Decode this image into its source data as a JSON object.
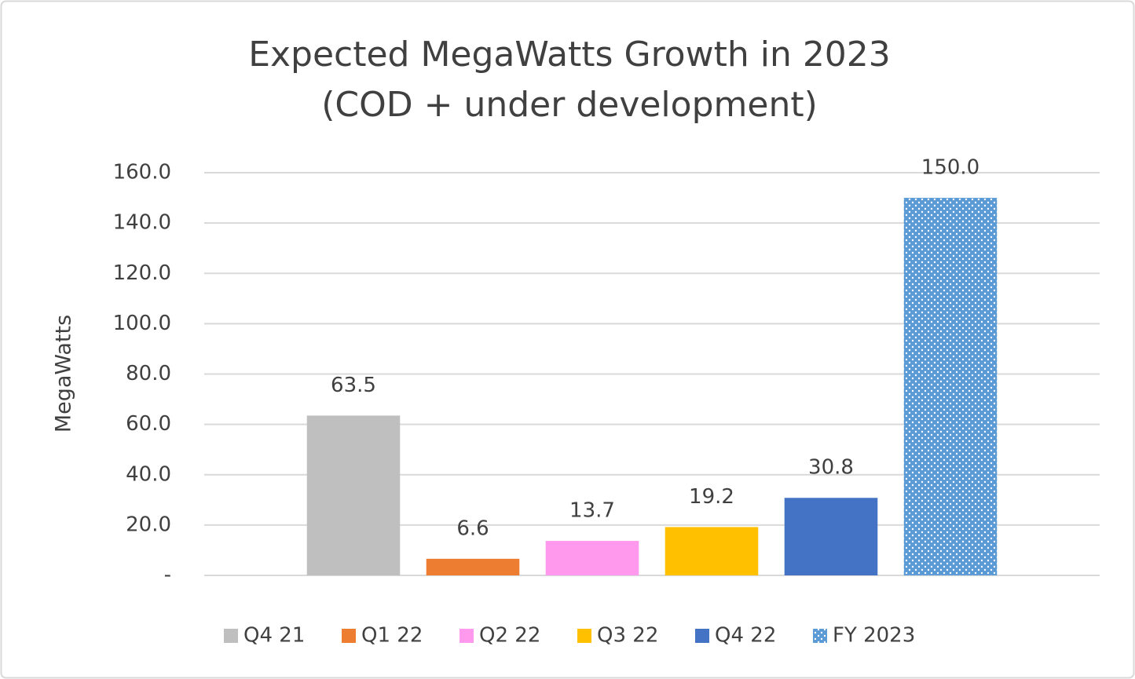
{
  "chart_data": {
    "type": "bar",
    "title": [
      "Expected MegaWatts Growth in 2023",
      "(COD + under development)"
    ],
    "y_axis_label": "MegaWatts",
    "categories": [
      null
    ],
    "series": [
      {
        "name": "Q4 21",
        "color": "#bfbfbf",
        "values": [
          63.5
        ],
        "value_labels": [
          "63.5"
        ]
      },
      {
        "name": "Q1 22",
        "color": "#ed7d31",
        "values": [
          6.6
        ],
        "value_labels": [
          "6.6"
        ]
      },
      {
        "name": "Q2 22",
        "color": "#ff99ee",
        "values": [
          13.7
        ],
        "value_labels": [
          "13.7"
        ]
      },
      {
        "name": "Q3 22",
        "color": "#ffc000",
        "values": [
          19.2
        ],
        "value_labels": [
          "19.2"
        ]
      },
      {
        "name": "Q4 22",
        "color": "#4472c4",
        "values": [
          30.8
        ],
        "value_labels": [
          "30.8"
        ]
      },
      {
        "name": "FY 2023",
        "color": "#5b9bd5",
        "pattern": "dotted",
        "values": [
          150.0
        ],
        "value_labels": [
          "150.0"
        ]
      }
    ],
    "ylim": [
      0,
      160
    ],
    "yticks": [
      {
        "value": 0,
        "label": "-"
      },
      {
        "value": 20,
        "label": "20.0"
      },
      {
        "value": 40,
        "label": "40.0"
      },
      {
        "value": 60,
        "label": "60.0"
      },
      {
        "value": 80,
        "label": "80.0"
      },
      {
        "value": 100,
        "label": "100.0"
      },
      {
        "value": 120,
        "label": "120.0"
      },
      {
        "value": 140,
        "label": "140.0"
      },
      {
        "value": 160,
        "label": "160.0"
      }
    ],
    "grid": true,
    "legend": "bottom"
  }
}
